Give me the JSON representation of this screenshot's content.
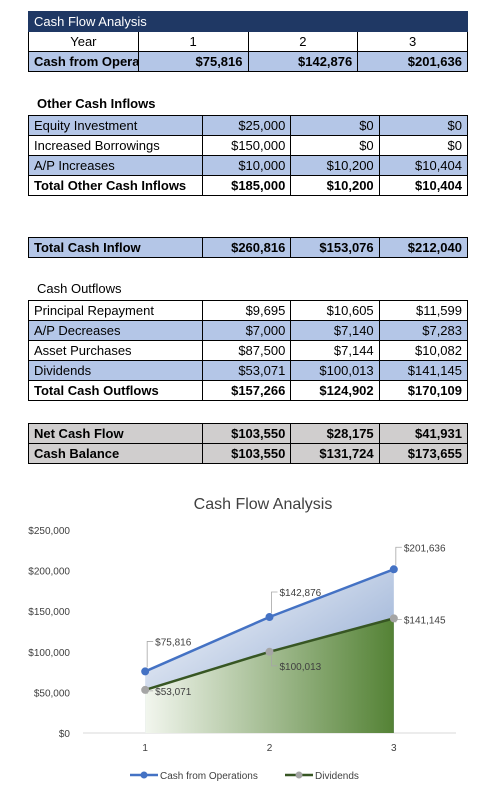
{
  "header": {
    "title": "Cash Flow Analysis"
  },
  "year_row": {
    "label": "Year",
    "years": [
      "1",
      "2",
      "3"
    ]
  },
  "cash_from_operations": {
    "label": "Cash from Operations",
    "values": [
      "$75,816",
      "$142,876",
      "$201,636"
    ]
  },
  "other_cash_inflows": {
    "title": "Other Cash Inflows",
    "rows": [
      {
        "label": "Equity Investment",
        "values": [
          "$25,000",
          "$0",
          "$0"
        ]
      },
      {
        "label": "Increased Borrowings",
        "values": [
          "$150,000",
          "$0",
          "$0"
        ]
      },
      {
        "label": "A/P Increases",
        "values": [
          "$10,000",
          "$10,200",
          "$10,404"
        ]
      }
    ],
    "total": {
      "label": "Total Other Cash Inflows",
      "values": [
        "$185,000",
        "$10,200",
        "$10,404"
      ]
    }
  },
  "total_cash_inflow": {
    "label": "Total Cash Inflow",
    "values": [
      "$260,816",
      "$153,076",
      "$212,040"
    ]
  },
  "cash_outflows": {
    "title": "Cash Outflows",
    "rows": [
      {
        "label": "Principal Repayment",
        "values": [
          "$9,695",
          "$10,605",
          "$11,599"
        ]
      },
      {
        "label": "A/P Decreases",
        "values": [
          "$7,000",
          "$7,140",
          "$7,283"
        ]
      },
      {
        "label": "Asset Purchases",
        "values": [
          "$87,500",
          "$7,144",
          "$10,082"
        ]
      },
      {
        "label": "Dividends",
        "values": [
          "$53,071",
          "$100,013",
          "$141,145"
        ]
      }
    ],
    "total": {
      "label": "Total Cash Outflows",
      "values": [
        "$157,266",
        "$124,902",
        "$170,109"
      ]
    }
  },
  "net": {
    "net_cash_flow": {
      "label": "Net Cash Flow",
      "values": [
        "$103,550",
        "$28,175",
        "$41,931"
      ]
    },
    "cash_balance": {
      "label": "Cash Balance",
      "values": [
        "$103,550",
        "$131,724",
        "$173,655"
      ]
    }
  },
  "colors": {
    "header_bg": "#1f3864",
    "band_blue": "#b4c6e7",
    "band_gray": "#d0cece",
    "ops_line": "#4472c4",
    "div_line": "#375623",
    "marker_gray": "#a5a5a5"
  },
  "chart_data": {
    "type": "area",
    "title": "Cash Flow Analysis",
    "categories": [
      "1",
      "2",
      "3"
    ],
    "ylim": [
      0,
      250000
    ],
    "yticks": [
      0,
      50000,
      100000,
      150000,
      200000,
      250000
    ],
    "ytick_labels": [
      "$0",
      "$50,000",
      "$100,000",
      "$150,000",
      "$200,000",
      "$250,000"
    ],
    "grid": false,
    "legend": "bottom",
    "series": [
      {
        "name": "Cash from Operations",
        "values": [
          75816,
          142876,
          201636
        ],
        "labels": [
          "$75,816",
          "$142,876",
          "$201,636"
        ],
        "color": "#4472c4"
      },
      {
        "name": "Dividends",
        "values": [
          53071,
          100013,
          141145
        ],
        "labels": [
          "$53,071",
          "$100,013",
          "$141,145"
        ],
        "color": "#375623"
      }
    ]
  }
}
